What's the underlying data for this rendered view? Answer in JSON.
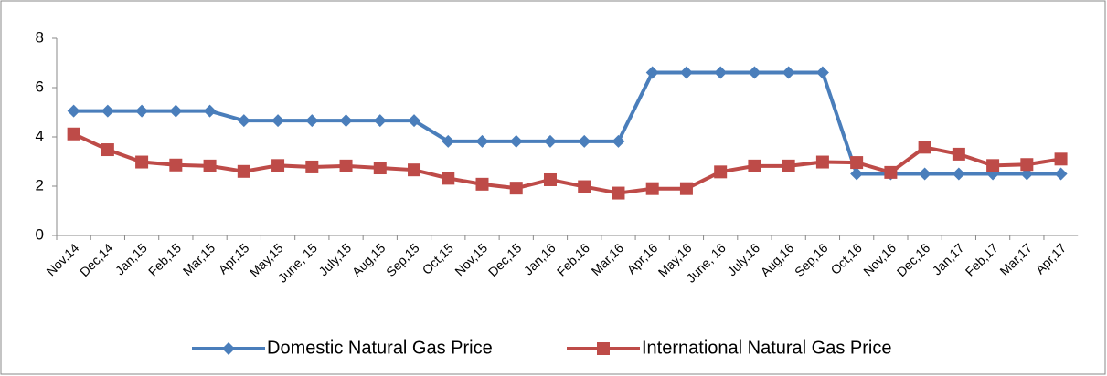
{
  "chart_data": {
    "type": "line",
    "categories": [
      "Nov,14",
      "Dec,14",
      "Jan,15",
      "Feb,15",
      "Mar,15",
      "Apr,15",
      "May,15",
      "June, 15",
      "July,15",
      "Aug,15",
      "Sep,15",
      "Oct,15",
      "Nov,15",
      "Dec,15",
      "Jan,16",
      "Feb,16",
      "Mar,16",
      "Apr,16",
      "May,16",
      "June, 16",
      "July,16",
      "Aug,16",
      "Sep,16",
      "Oct,16",
      "Nov,16",
      "Dec,16",
      "Jan,17",
      "Feb,17",
      "Mar,17",
      "Apr,17"
    ],
    "series": [
      {
        "name": "Domestic Natural Gas Price",
        "color": "#4a7ebb",
        "marker": "diamond",
        "values": [
          5.05,
          5.05,
          5.05,
          5.05,
          5.05,
          4.66,
          4.66,
          4.66,
          4.66,
          4.66,
          4.66,
          3.82,
          3.82,
          3.82,
          3.82,
          3.82,
          3.82,
          6.61,
          6.61,
          6.61,
          6.61,
          6.61,
          6.61,
          2.5,
          2.5,
          2.5,
          2.5,
          2.5,
          2.5,
          2.5
        ]
      },
      {
        "name": "International  Natural Gas Price",
        "color": "#be4b48",
        "marker": "square",
        "values": [
          4.12,
          3.48,
          2.98,
          2.86,
          2.82,
          2.6,
          2.84,
          2.78,
          2.82,
          2.74,
          2.66,
          2.32,
          2.08,
          1.92,
          2.26,
          1.98,
          1.72,
          1.9,
          1.9,
          2.58,
          2.82,
          2.82,
          2.98,
          2.96,
          2.56,
          3.58,
          3.3,
          2.84,
          2.88,
          3.1
        ]
      }
    ],
    "ylim": [
      0,
      8
    ],
    "yticks": [
      0,
      2,
      4,
      6,
      8
    ],
    "grid": false,
    "legend": "bottom"
  }
}
